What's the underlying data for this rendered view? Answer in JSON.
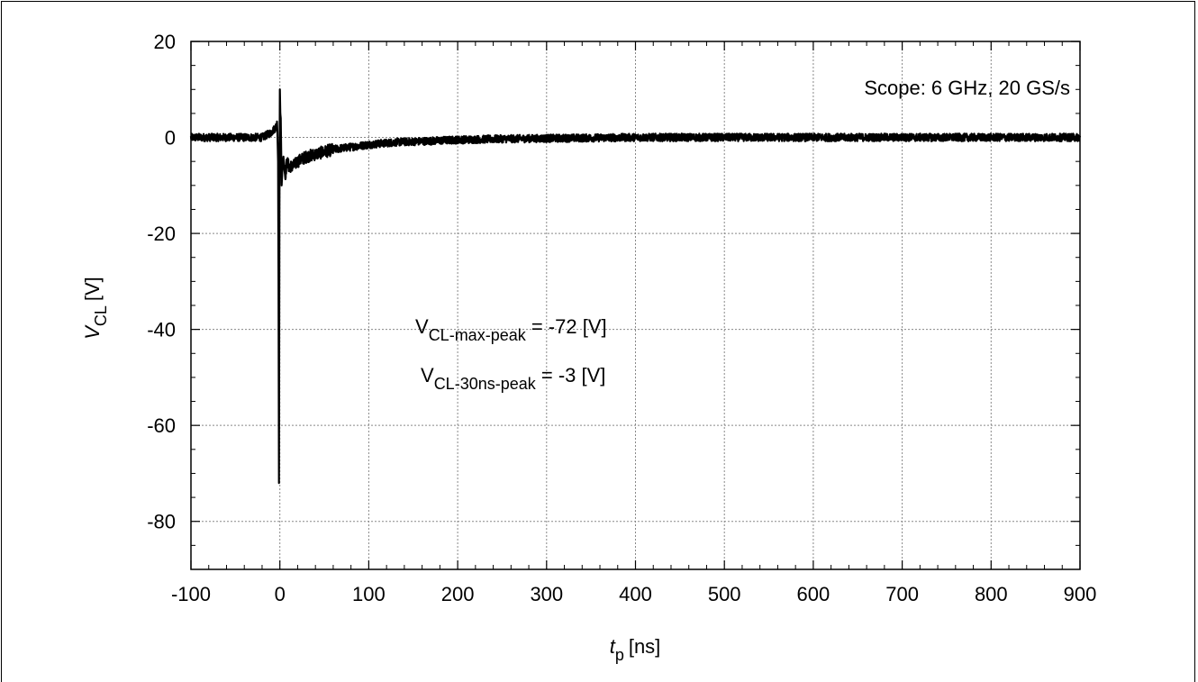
{
  "chart_data": {
    "type": "line",
    "title": "",
    "xlabel": {
      "main": "t",
      "sub": "p",
      "unit": "[ns]"
    },
    "ylabel": {
      "main": "V",
      "sub": "CL",
      "unit": "[V]"
    },
    "xlim": [
      -100,
      900
    ],
    "ylim": [
      -90,
      20
    ],
    "xticks": [
      -100,
      0,
      100,
      200,
      300,
      400,
      500,
      600,
      700,
      800,
      900
    ],
    "yticks": [
      -80,
      -60,
      -40,
      -20,
      0,
      20
    ],
    "x_tick_labels": [
      "-100",
      "0",
      "100",
      "200",
      "300",
      "400",
      "500",
      "600",
      "700",
      "800",
      "900"
    ],
    "y_tick_labels": [
      "-80",
      "-60",
      "-40",
      "-20",
      "0",
      "20"
    ],
    "grid": true,
    "series": [
      {
        "color": "#000000",
        "x": [
          -100,
          -80,
          -60,
          -40,
          -20,
          -10,
          -5,
          -3,
          -2,
          -1.5,
          -1,
          -0.5,
          0,
          0.5,
          1,
          2,
          3,
          4,
          6,
          8,
          10,
          15,
          20,
          30,
          40,
          50,
          60,
          80,
          100,
          130,
          160,
          200,
          250,
          300,
          350,
          400,
          450,
          500,
          550,
          600,
          650,
          700,
          750,
          800,
          850,
          900
        ],
        "y": [
          0,
          0,
          0,
          0,
          0,
          1,
          2,
          3,
          -5,
          -30,
          -72,
          -15,
          10,
          5,
          4,
          -10,
          -6,
          -4,
          -8,
          -5,
          -6,
          -6,
          -5,
          -4,
          -3.5,
          -3,
          -2.5,
          -2,
          -1.5,
          -1,
          -0.8,
          -0.5,
          -0.3,
          -0.2,
          -0.1,
          0,
          0,
          0,
          0,
          0,
          0,
          0,
          0,
          0,
          0,
          0
        ],
        "noise_amplitude_V": 0.8
      }
    ],
    "annotations": {
      "scope": "Scope: 6 GHz, 20 GS/s",
      "max_peak": {
        "main": "V",
        "sub": "CL-max-peak",
        "rest": " = -72 [V]"
      },
      "peak_30ns": {
        "main": "V",
        "sub": "CL-30ns-peak",
        "rest": " = -3 [V]"
      }
    }
  }
}
